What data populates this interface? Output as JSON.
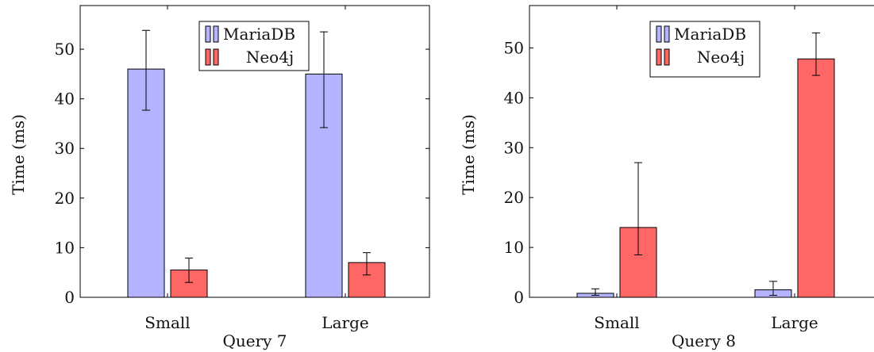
{
  "chart_data": [
    {
      "type": "bar",
      "categories": [
        "Small",
        "Large"
      ],
      "series": [
        {
          "name": "MariaDB",
          "values": [
            46.0,
            45.0
          ],
          "err_low": [
            37.7,
            34.2
          ],
          "err_high": [
            53.8,
            53.5
          ],
          "color": "#b3b3ff"
        },
        {
          "name": "Neo4j",
          "values": [
            5.5,
            7.0
          ],
          "err_low": [
            3.0,
            4.5
          ],
          "err_high": [
            7.9,
            9.0
          ],
          "color": "#ff6666"
        }
      ],
      "xlabel": "Query 7",
      "ylabel": "Time (ms)",
      "ylim": [
        0,
        58.8
      ],
      "yticks": [
        0,
        10,
        20,
        30,
        40,
        50
      ],
      "legend": "top-center"
    },
    {
      "type": "bar",
      "categories": [
        "Small",
        "Large"
      ],
      "series": [
        {
          "name": "MariaDB",
          "values": [
            0.8,
            1.5
          ],
          "err_low": [
            0.4,
            0.4
          ],
          "err_high": [
            1.7,
            3.2
          ],
          "color": "#b3b3ff"
        },
        {
          "name": "Neo4j",
          "values": [
            14.0,
            47.8
          ],
          "err_low": [
            8.5,
            44.5
          ],
          "err_high": [
            27.0,
            53.0
          ],
          "color": "#ff6666"
        }
      ],
      "xlabel": "Query 8",
      "ylabel": "Time (ms)",
      "ylim": [
        0,
        58.5
      ],
      "yticks": [
        0,
        10,
        20,
        30,
        40,
        50
      ],
      "legend": "top-center"
    }
  ]
}
